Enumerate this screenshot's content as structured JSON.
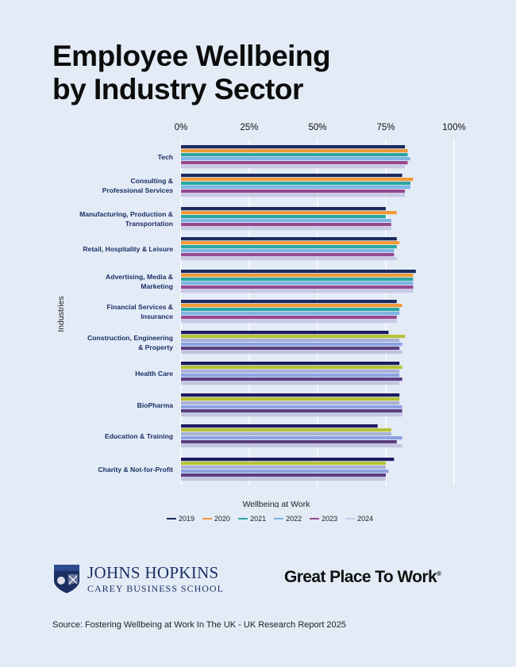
{
  "title_line1": "Employee Wellbeing",
  "title_line2": "by Industry Sector",
  "chart_data": {
    "type": "bar",
    "orientation": "horizontal",
    "xlabel": "Wellbeing at Work",
    "ylabel": "Industries",
    "xlim": [
      0,
      100
    ],
    "x_ticks": [
      "0%",
      "25%",
      "50%",
      "75%",
      "100%"
    ],
    "grid": "vertical",
    "legend_position": "bottom",
    "categories": [
      "Tech",
      "Consulting & Professional Services",
      "Manufacturing, Production & Transportation",
      "Retail, Hospitality & Leisure",
      "Advertising, Media & Marketing",
      "Financial Services & Insurance",
      "Construction, Engineering & Property",
      "Health Care",
      "BioPharma",
      "Education & Training",
      "Charity & Not-for-Profit"
    ],
    "category_lines": [
      [
        "Tech"
      ],
      [
        "Consulting &",
        "Professional Services"
      ],
      [
        "Manufacturing, Production &",
        "Transportation"
      ],
      [
        "Retail, Hospitality & Leisure"
      ],
      [
        "Advertising, Media &",
        "Marketing"
      ],
      [
        "Financial Services &",
        "Insurance"
      ],
      [
        "Construction, Engineering",
        "& Property"
      ],
      [
        "Health Care"
      ],
      [
        "BioPharma"
      ],
      [
        "Education & Training"
      ],
      [
        "Charity & Not-for-Profit"
      ]
    ],
    "series": [
      {
        "name": "2019",
        "values": [
          82,
          81,
          75,
          79,
          86,
          79,
          76,
          80,
          80,
          72,
          78
        ]
      },
      {
        "name": "2020",
        "values": [
          83,
          85,
          79,
          80,
          85,
          81,
          82,
          81,
          80,
          77,
          75
        ]
      },
      {
        "name": "2021",
        "values": [
          83,
          84,
          75,
          79,
          85,
          80,
          80,
          80,
          80,
          77,
          75
        ]
      },
      {
        "name": "2022",
        "values": [
          84,
          84,
          77,
          78,
          85,
          80,
          81,
          80,
          81,
          81,
          76
        ]
      },
      {
        "name": "2023",
        "values": [
          83,
          82,
          77,
          78,
          85,
          79,
          80,
          81,
          81,
          79,
          75
        ]
      },
      {
        "name": "2024",
        "values": [
          82,
          82,
          77,
          79,
          85,
          79,
          81,
          80,
          81,
          81,
          75
        ]
      }
    ],
    "series_colors": [
      [
        "#1b2a5e",
        "#f29a38",
        "#2aa6a0",
        "#7fb4e2",
        "#96498e",
        "#c8c9e6"
      ],
      [
        "#1b2a5e",
        "#f29a38",
        "#2aa6a0",
        "#7fb4e2",
        "#96498e",
        "#c8c9e6"
      ],
      [
        "#1b2a5e",
        "#f29a38",
        "#2aa6a0",
        "#7fb4e2",
        "#96498e",
        "#c8c9e6"
      ],
      [
        "#1b2a5e",
        "#f29a38",
        "#2aa6a0",
        "#7fb4e2",
        "#96498e",
        "#c8c9e6"
      ],
      [
        "#1b2a5e",
        "#f29a38",
        "#2aa6a0",
        "#7fb4e2",
        "#96498e",
        "#c8c9e6"
      ],
      [
        "#1b2a5e",
        "#f29a38",
        "#2aa6a0",
        "#7fb4e2",
        "#96498e",
        "#c8c9e6"
      ],
      [
        "#1e1c5e",
        "#b6c235",
        "#a7b1d6",
        "#8ea2e3",
        "#5a3e80",
        "#c2c4e0"
      ],
      [
        "#1e1c5e",
        "#b6c235",
        "#a7b1d6",
        "#8ea2e3",
        "#5a3e80",
        "#c2c4e0"
      ],
      [
        "#1e1c5e",
        "#b6c235",
        "#a7b1d6",
        "#8ea2e3",
        "#5a3e80",
        "#c2c4e0"
      ],
      [
        "#1e1c5e",
        "#b6c235",
        "#a7b1d6",
        "#8ea2e3",
        "#5a3e80",
        "#c2c4e0"
      ],
      [
        "#1e1c5e",
        "#b6c235",
        "#a7b1d6",
        "#8ea2e3",
        "#5a3e80",
        "#c2c4e0"
      ]
    ],
    "legend_colors": [
      "#1b2a5e",
      "#f29a38",
      "#2aa6a0",
      "#7fb4e2",
      "#96498e",
      "#c8c9e6"
    ]
  },
  "logo_jh_line1": "JOHNS HOPKINS",
  "logo_jh_line2": "CAREY BUSINESS SCHOOL",
  "logo_gptw": "Great Place To Work",
  "logo_gptw_mark": "®",
  "source": "Source: Fostering Wellbeing at Work In The UK - UK Research Report 2025"
}
